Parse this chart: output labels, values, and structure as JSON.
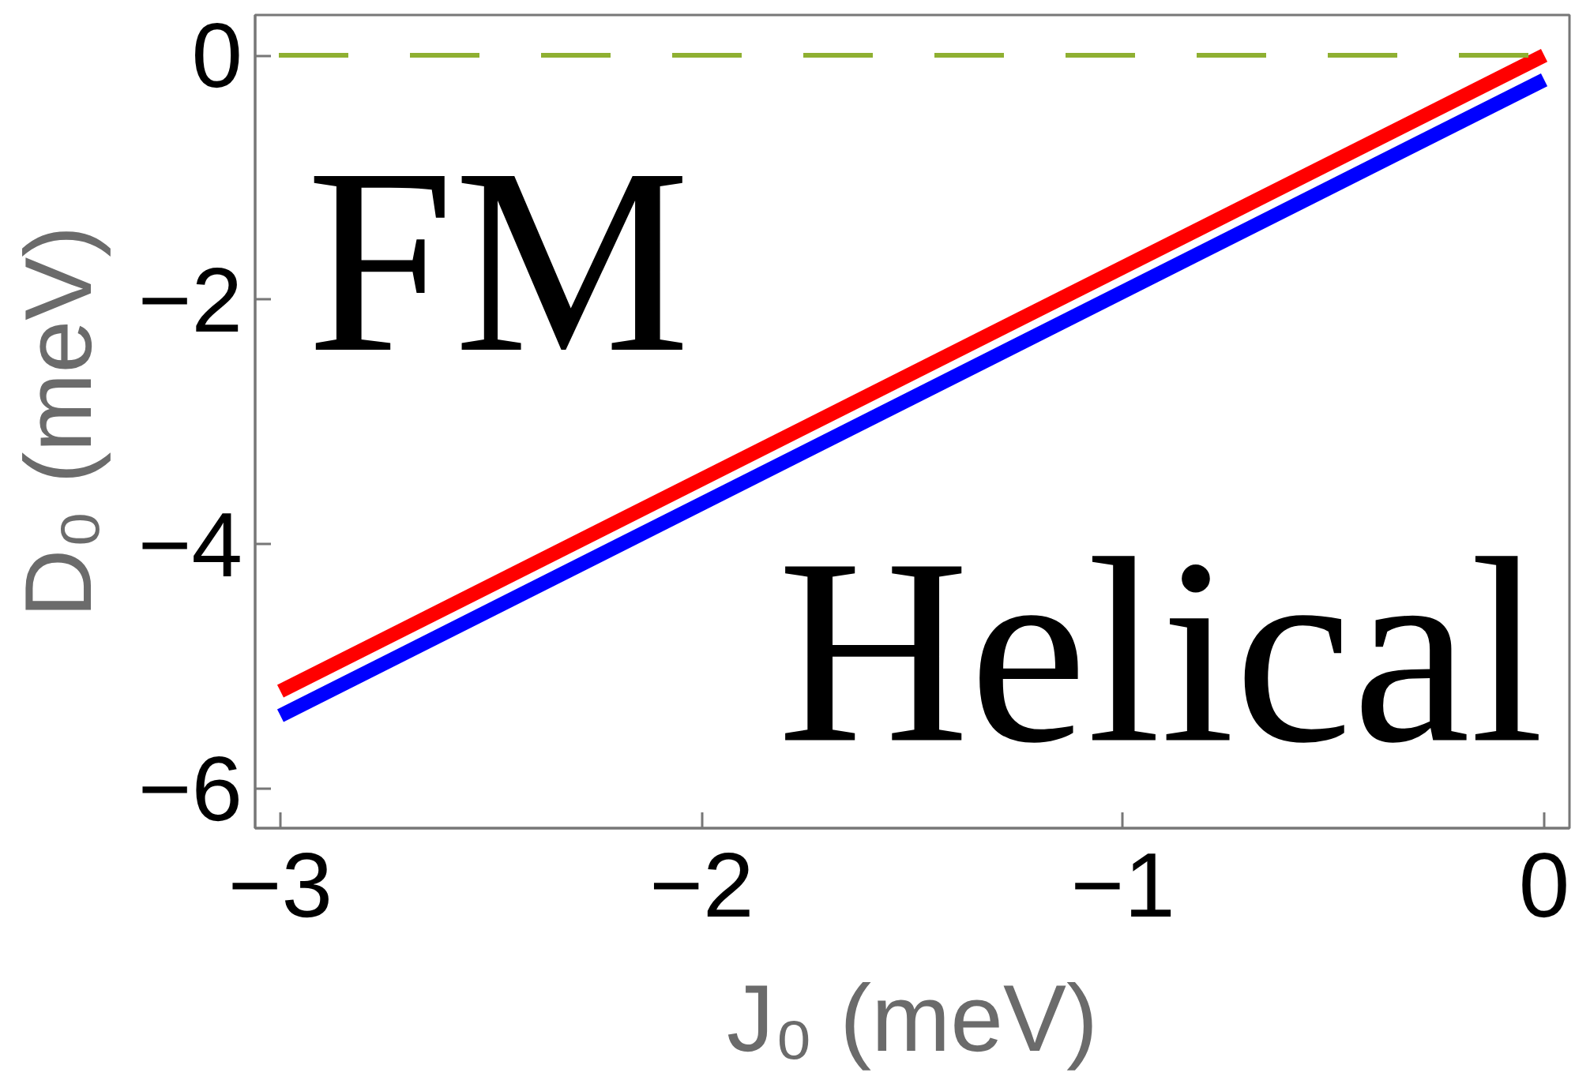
{
  "chart_data": {
    "type": "line",
    "xlabel": "J₀ (meV)",
    "ylabel": "D₀ (meV)",
    "xlim": [
      -3.06,
      0.06
    ],
    "ylim": [
      -6.32,
      0.33
    ],
    "xticks": [
      {
        "value": -3,
        "label": "−3"
      },
      {
        "value": -2,
        "label": "−2"
      },
      {
        "value": -1,
        "label": "−1"
      },
      0
    ],
    "yticks": [
      {
        "value": -6,
        "label": "−6"
      },
      {
        "value": -4,
        "label": "−4"
      },
      {
        "value": -2,
        "label": "−2"
      },
      0
    ],
    "x": [
      -3,
      0
    ],
    "series": [
      {
        "color": "#0000ff",
        "values": [
          -5.4,
          -0.2
        ]
      },
      {
        "color": "#ff0000",
        "values": [
          -5.2,
          0
        ]
      }
    ],
    "ref_lines": [
      {
        "axis": "y",
        "value": 0,
        "color": "#8fb032",
        "line_style": "dashed"
      }
    ],
    "annotations": [
      "FM",
      "Helical"
    ]
  }
}
